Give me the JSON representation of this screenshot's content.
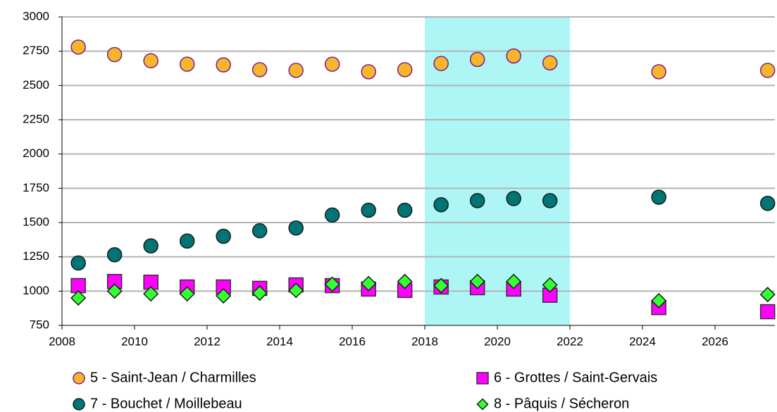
{
  "chart_data": {
    "type": "scatter",
    "xlim": [
      2008,
      2027.65
    ],
    "xticks": [
      2008,
      2010,
      2012,
      2014,
      2016,
      2018,
      2020,
      2022,
      2024,
      2026
    ],
    "ylim": [
      750,
      3000
    ],
    "yticks": [
      750,
      1000,
      1250,
      1500,
      1750,
      2000,
      2250,
      2500,
      2750,
      3000
    ],
    "grid": true,
    "shaded_x": [
      2018,
      2022
    ],
    "shade_color": "#aef6f6",
    "x": [
      2008.45,
      2009.45,
      2010.45,
      2011.45,
      2012.45,
      2013.45,
      2014.45,
      2015.45,
      2016.45,
      2017.45,
      2018.45,
      2019.45,
      2020.45,
      2021.45,
      2024.45,
      2027.45
    ],
    "series": [
      {
        "name": "5 - Saint-Jean / Charmilles",
        "color": "#f7b52c",
        "stroke": "#7a1e8c",
        "marker": "circle",
        "values": [
          2780,
          2725,
          2680,
          2655,
          2650,
          2615,
          2610,
          2655,
          2600,
          2615,
          2660,
          2690,
          2715,
          2665,
          2600,
          2610
        ]
      },
      {
        "name": "6 - Grottes / Saint-Gervais",
        "color": "#ff00ff",
        "stroke": "#333333",
        "marker": "square",
        "values": [
          1040,
          1070,
          1065,
          1030,
          1030,
          1020,
          1045,
          1040,
          1015,
          1005,
          1030,
          1025,
          1015,
          970,
          880,
          850
        ]
      },
      {
        "name": "7 - Bouchet / Moillebeau",
        "color": "#007575",
        "stroke": "#1a1a1a",
        "marker": "circle",
        "values": [
          1205,
          1265,
          1330,
          1365,
          1400,
          1440,
          1460,
          1555,
          1590,
          1590,
          1630,
          1660,
          1675,
          1660,
          1685,
          1640
        ]
      },
      {
        "name": "8 - Pâquis / Sécheron",
        "color": "#33ff33",
        "stroke": "#1a1a1a",
        "marker": "diamond",
        "values": [
          950,
          1000,
          980,
          980,
          965,
          985,
          1005,
          1050,
          1055,
          1070,
          1040,
          1070,
          1070,
          1045,
          930,
          975
        ]
      }
    ]
  }
}
